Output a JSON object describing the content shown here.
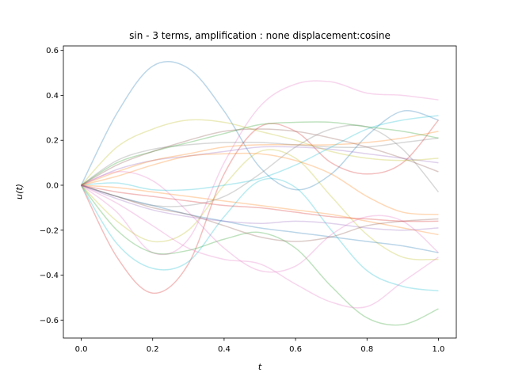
{
  "chart_data": {
    "type": "line",
    "title": "sin - 3 terms, amplification : none displacement:cosine",
    "xlabel": "t",
    "ylabel": "u(t)",
    "xlim": [
      -0.05,
      1.05
    ],
    "ylim": [
      -0.68,
      0.62
    ],
    "xticks": [
      0.0,
      0.2,
      0.4,
      0.6,
      0.8,
      1.0
    ],
    "xtick_labels": [
      "0.0",
      "0.2",
      "0.4",
      "0.6",
      "0.8",
      "1.0"
    ],
    "yticks": [
      -0.6,
      -0.4,
      -0.2,
      0.0,
      0.2,
      0.4,
      0.6
    ],
    "ytick_labels": [
      "−0.6",
      "−0.4",
      "−0.2",
      "0.0",
      "0.2",
      "0.4",
      "0.6"
    ],
    "grid": false,
    "legend": "none",
    "line_opacity": 0.3,
    "x": [
      0.0,
      0.1,
      0.2,
      0.3,
      0.4,
      0.5,
      0.6,
      0.7,
      0.8,
      0.9,
      1.0
    ],
    "series": [
      {
        "color": "#1f77b4",
        "values": [
          0.0,
          0.32,
          0.53,
          0.52,
          0.33,
          0.08,
          -0.02,
          0.05,
          0.22,
          0.33,
          0.29
        ]
      },
      {
        "color": "#e377c2",
        "values": [
          0.0,
          -0.12,
          -0.3,
          -0.24,
          0.1,
          0.35,
          0.45,
          0.46,
          0.41,
          0.4,
          0.38
        ]
      },
      {
        "color": "#d62728",
        "values": [
          0.0,
          -0.32,
          -0.48,
          -0.35,
          0.05,
          0.26,
          0.24,
          0.1,
          0.05,
          0.1,
          0.29
        ]
      },
      {
        "color": "#9467bd",
        "values": [
          0.0,
          0.07,
          0.11,
          0.13,
          0.15,
          0.17,
          0.17,
          0.16,
          0.14,
          0.12,
          0.1
        ]
      },
      {
        "color": "#2ca02c",
        "values": [
          0.0,
          -0.2,
          -0.3,
          -0.29,
          -0.24,
          -0.21,
          -0.28,
          -0.45,
          -0.59,
          -0.62,
          -0.55
        ]
      },
      {
        "color": "#17becf",
        "values": [
          0.0,
          -0.26,
          -0.37,
          -0.34,
          -0.14,
          0.02,
          -0.01,
          -0.2,
          -0.38,
          -0.45,
          -0.47
        ]
      },
      {
        "color": "#bcbd22",
        "values": [
          0.0,
          0.17,
          0.25,
          0.29,
          0.28,
          0.24,
          0.2,
          0.15,
          0.12,
          0.11,
          0.12
        ]
      },
      {
        "color": "#bcbd22",
        "values": [
          0.0,
          -0.16,
          -0.25,
          -0.2,
          0.0,
          0.15,
          0.12,
          -0.05,
          -0.22,
          -0.32,
          -0.33
        ]
      },
      {
        "color": "#ff7f0e",
        "values": [
          0.0,
          0.06,
          0.11,
          0.14,
          0.17,
          0.18,
          0.18,
          0.18,
          0.19,
          0.21,
          0.24
        ]
      },
      {
        "color": "#ff7f0e",
        "values": [
          0.0,
          -0.01,
          -0.03,
          -0.05,
          -0.07,
          -0.09,
          -0.11,
          -0.13,
          -0.16,
          -0.19,
          -0.22
        ]
      },
      {
        "color": "#1f77b4",
        "values": [
          0.0,
          -0.05,
          -0.09,
          -0.13,
          -0.16,
          -0.19,
          -0.21,
          -0.23,
          -0.25,
          -0.27,
          -0.3
        ]
      },
      {
        "color": "#e377c2",
        "values": [
          0.0,
          0.06,
          0.02,
          -0.12,
          -0.28,
          -0.38,
          -0.36,
          -0.22,
          -0.14,
          -0.16,
          -0.3
        ]
      },
      {
        "color": "#7f7f7f",
        "values": [
          0.0,
          0.11,
          0.16,
          0.18,
          0.19,
          0.19,
          0.18,
          0.17,
          0.17,
          0.19,
          0.21
        ]
      },
      {
        "color": "#7f7f7f",
        "values": [
          0.0,
          -0.05,
          -0.09,
          -0.09,
          -0.05,
          0.05,
          0.17,
          0.25,
          0.26,
          0.16,
          -0.03
        ]
      },
      {
        "color": "#2ca02c",
        "values": [
          0.0,
          0.1,
          0.15,
          0.19,
          0.23,
          0.27,
          0.28,
          0.28,
          0.26,
          0.24,
          0.21
        ]
      },
      {
        "color": "#8c564b",
        "values": [
          0.0,
          -0.05,
          -0.1,
          -0.13,
          -0.18,
          -0.23,
          -0.25,
          -0.23,
          -0.18,
          -0.16,
          -0.15
        ]
      },
      {
        "color": "#17becf",
        "values": [
          0.0,
          0.01,
          -0.02,
          -0.02,
          0.0,
          0.03,
          0.09,
          0.17,
          0.25,
          0.29,
          0.31
        ]
      },
      {
        "color": "#ff7f0e",
        "values": [
          0.0,
          0.04,
          0.09,
          0.13,
          0.14,
          0.14,
          0.11,
          0.05,
          -0.05,
          -0.12,
          -0.13
        ]
      },
      {
        "color": "#8c564b",
        "values": [
          0.0,
          0.09,
          0.15,
          0.2,
          0.24,
          0.25,
          0.24,
          0.21,
          0.17,
          0.12,
          0.06
        ]
      },
      {
        "color": "#e377c2",
        "values": [
          0.0,
          -0.08,
          -0.18,
          -0.28,
          -0.33,
          -0.35,
          -0.44,
          -0.52,
          -0.54,
          -0.43,
          -0.32
        ]
      },
      {
        "color": "#d62728",
        "values": [
          0.0,
          -0.03,
          -0.05,
          -0.07,
          -0.09,
          -0.1,
          -0.12,
          -0.14,
          -0.15,
          -0.16,
          -0.16
        ]
      },
      {
        "color": "#9467bd",
        "values": [
          0.0,
          -0.06,
          -0.11,
          -0.14,
          -0.16,
          -0.17,
          -0.16,
          -0.17,
          -0.19,
          -0.2,
          -0.19
        ]
      }
    ]
  }
}
